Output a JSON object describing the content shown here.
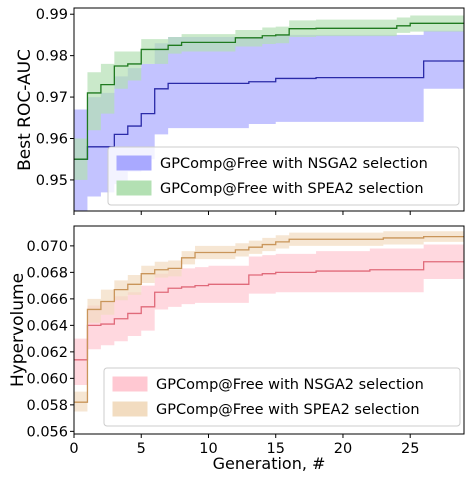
{
  "chart_data": [
    {
      "type": "line",
      "ylabel": "Best ROC-AUC",
      "xlabel": "",
      "xlim": [
        0,
        29
      ],
      "ylim": [
        0.9425,
        0.9915
      ],
      "yticks": [
        0.95,
        0.96,
        0.97,
        0.98,
        0.99
      ],
      "ytick_labels": [
        "0.95",
        "0.96",
        "0.97",
        "0.98",
        "0.99"
      ],
      "xticks": [
        0,
        5,
        10,
        15,
        20,
        25
      ],
      "xtick_labels": [
        "",
        "",
        "",
        "",
        "",
        ""
      ],
      "grid": false,
      "legend_position": "lower-right",
      "series": [
        {
          "name": "GPComp@Free with NSGA2 selection",
          "color": "#2a2aa8",
          "band_color": "#a9a9ff",
          "x": [
            0,
            1,
            2,
            3,
            4,
            5,
            6,
            7,
            8,
            9,
            10,
            11,
            12,
            13,
            14,
            15,
            16,
            17,
            18,
            19,
            20,
            21,
            22,
            23,
            24,
            25,
            26,
            27,
            28,
            29
          ],
          "mean": [
            0.955,
            0.958,
            0.958,
            0.961,
            0.963,
            0.966,
            0.972,
            0.9733,
            0.9733,
            0.9733,
            0.9733,
            0.9733,
            0.9733,
            0.9737,
            0.9737,
            0.9745,
            0.9745,
            0.9745,
            0.9747,
            0.9747,
            0.9747,
            0.9747,
            0.9747,
            0.9747,
            0.9747,
            0.9747,
            0.9787,
            0.9787,
            0.9787,
            0.9787
          ],
          "lower": [
            0.9425,
            0.946,
            0.947,
            0.949,
            0.952,
            0.955,
            0.961,
            0.9625,
            0.9625,
            0.9625,
            0.9625,
            0.9625,
            0.9625,
            0.9635,
            0.9635,
            0.964,
            0.964,
            0.964,
            0.964,
            0.964,
            0.964,
            0.964,
            0.964,
            0.964,
            0.964,
            0.964,
            0.972,
            0.972,
            0.972,
            0.972
          ],
          "upper": [
            0.967,
            0.97,
            0.971,
            0.975,
            0.977,
            0.978,
            0.983,
            0.9845,
            0.9845,
            0.9845,
            0.9845,
            0.9845,
            0.9845,
            0.9845,
            0.9845,
            0.985,
            0.985,
            0.985,
            0.985,
            0.985,
            0.985,
            0.985,
            0.985,
            0.985,
            0.985,
            0.985,
            0.986,
            0.986,
            0.986,
            0.986
          ]
        },
        {
          "name": "GPComp@Free with SPEA2 selection",
          "color": "#1f7a1f",
          "band_color": "#b3e0b3",
          "x": [
            0,
            1,
            2,
            3,
            4,
            5,
            6,
            7,
            8,
            9,
            10,
            11,
            12,
            13,
            14,
            15,
            16,
            17,
            18,
            19,
            20,
            21,
            22,
            23,
            24,
            25,
            26,
            27,
            28,
            29
          ],
          "mean": [
            0.955,
            0.971,
            0.973,
            0.9775,
            0.978,
            0.9815,
            0.9815,
            0.9825,
            0.9832,
            0.9832,
            0.9832,
            0.9832,
            0.9843,
            0.9843,
            0.9848,
            0.985,
            0.9865,
            0.9865,
            0.9866,
            0.9866,
            0.9866,
            0.9866,
            0.9866,
            0.9866,
            0.9872,
            0.9878,
            0.9878,
            0.9878,
            0.9878,
            0.9878
          ],
          "lower": [
            0.95,
            0.962,
            0.966,
            0.972,
            0.974,
            0.978,
            0.978,
            0.9805,
            0.981,
            0.981,
            0.981,
            0.981,
            0.9822,
            0.9822,
            0.9828,
            0.983,
            0.9845,
            0.9845,
            0.9847,
            0.9847,
            0.9847,
            0.9847,
            0.9847,
            0.9847,
            0.9855,
            0.9858,
            0.9858,
            0.9858,
            0.9858,
            0.9858
          ],
          "upper": [
            0.96,
            0.976,
            0.978,
            0.981,
            0.981,
            0.984,
            0.984,
            0.9845,
            0.9852,
            0.9852,
            0.9852,
            0.9852,
            0.9862,
            0.9862,
            0.9868,
            0.987,
            0.9885,
            0.9885,
            0.9887,
            0.9887,
            0.9887,
            0.9887,
            0.9887,
            0.9887,
            0.9892,
            0.9897,
            0.9897,
            0.9897,
            0.9897,
            0.9897
          ]
        }
      ]
    },
    {
      "type": "line",
      "ylabel": "Hypervolume",
      "xlabel": "Generation, #",
      "xlim": [
        0,
        29
      ],
      "ylim": [
        0.0558,
        0.0715
      ],
      "yticks": [
        0.056,
        0.058,
        0.06,
        0.062,
        0.064,
        0.066,
        0.068,
        0.07
      ],
      "ytick_labels": [
        "0.056",
        "0.058",
        "0.060",
        "0.062",
        "0.064",
        "0.066",
        "0.068",
        "0.070"
      ],
      "xticks": [
        0,
        5,
        10,
        15,
        20,
        25
      ],
      "xtick_labels": [
        "0",
        "5",
        "10",
        "15",
        "20",
        "25"
      ],
      "grid": false,
      "legend_position": "lower-right",
      "series": [
        {
          "name": "GPComp@Free with NSGA2 selection",
          "color": "#e06a7a",
          "band_color": "#ffc8d2",
          "x": [
            0,
            1,
            2,
            3,
            4,
            5,
            6,
            7,
            8,
            9,
            10,
            11,
            12,
            13,
            14,
            15,
            16,
            17,
            18,
            19,
            20,
            21,
            22,
            23,
            24,
            25,
            26,
            27,
            28,
            29
          ],
          "mean": [
            0.0614,
            0.064,
            0.0641,
            0.0645,
            0.0649,
            0.0654,
            0.0665,
            0.0668,
            0.0669,
            0.067,
            0.0671,
            0.0671,
            0.0671,
            0.0678,
            0.0679,
            0.068,
            0.068,
            0.068,
            0.0681,
            0.0681,
            0.0681,
            0.0681,
            0.0682,
            0.0682,
            0.0682,
            0.0682,
            0.0688,
            0.0688,
            0.0688,
            0.0688
          ],
          "lower": [
            0.0595,
            0.0622,
            0.0625,
            0.0628,
            0.0632,
            0.0636,
            0.0652,
            0.0654,
            0.0656,
            0.0657,
            0.0657,
            0.0657,
            0.0657,
            0.0664,
            0.0664,
            0.0665,
            0.0665,
            0.0665,
            0.0665,
            0.0665,
            0.0665,
            0.0665,
            0.0665,
            0.0665,
            0.0665,
            0.0665,
            0.0675,
            0.0675,
            0.0675,
            0.0675
          ],
          "upper": [
            0.063,
            0.0655,
            0.0658,
            0.0662,
            0.0665,
            0.067,
            0.0679,
            0.0682,
            0.0683,
            0.0684,
            0.0685,
            0.0685,
            0.0685,
            0.0692,
            0.0693,
            0.0694,
            0.0694,
            0.0694,
            0.0696,
            0.0696,
            0.0696,
            0.0696,
            0.0698,
            0.0698,
            0.0698,
            0.0698,
            0.0701,
            0.0701,
            0.0701,
            0.0701
          ]
        },
        {
          "name": "GPComp@Free with SPEA2 selection",
          "color": "#c9955a",
          "band_color": "#f2dcc0",
          "x": [
            0,
            1,
            2,
            3,
            4,
            5,
            6,
            7,
            8,
            9,
            10,
            11,
            12,
            13,
            14,
            15,
            16,
            17,
            18,
            19,
            20,
            21,
            22,
            23,
            24,
            25,
            26,
            27,
            28,
            29
          ],
          "mean": [
            0.0582,
            0.0652,
            0.0658,
            0.0667,
            0.0671,
            0.0679,
            0.0682,
            0.0683,
            0.0691,
            0.0695,
            0.0695,
            0.0695,
            0.0697,
            0.0699,
            0.0701,
            0.0703,
            0.0705,
            0.0705,
            0.0705,
            0.0705,
            0.0705,
            0.0705,
            0.0705,
            0.0706,
            0.0706,
            0.0706,
            0.0707,
            0.0707,
            0.0707,
            0.0707
          ],
          "lower": [
            0.0575,
            0.0642,
            0.0648,
            0.0659,
            0.0663,
            0.0672,
            0.0676,
            0.0677,
            0.0686,
            0.069,
            0.069,
            0.069,
            0.0692,
            0.0694,
            0.0696,
            0.0698,
            0.07,
            0.07,
            0.07,
            0.07,
            0.07,
            0.07,
            0.07,
            0.0701,
            0.0701,
            0.0701,
            0.0703,
            0.0703,
            0.0703,
            0.0703
          ],
          "upper": [
            0.059,
            0.066,
            0.0667,
            0.0674,
            0.0678,
            0.0685,
            0.0688,
            0.0689,
            0.0696,
            0.07,
            0.07,
            0.07,
            0.0702,
            0.0704,
            0.0706,
            0.0708,
            0.071,
            0.071,
            0.071,
            0.071,
            0.071,
            0.071,
            0.071,
            0.0711,
            0.0711,
            0.0711,
            0.0711,
            0.0711,
            0.0711,
            0.0711
          ]
        }
      ]
    }
  ]
}
